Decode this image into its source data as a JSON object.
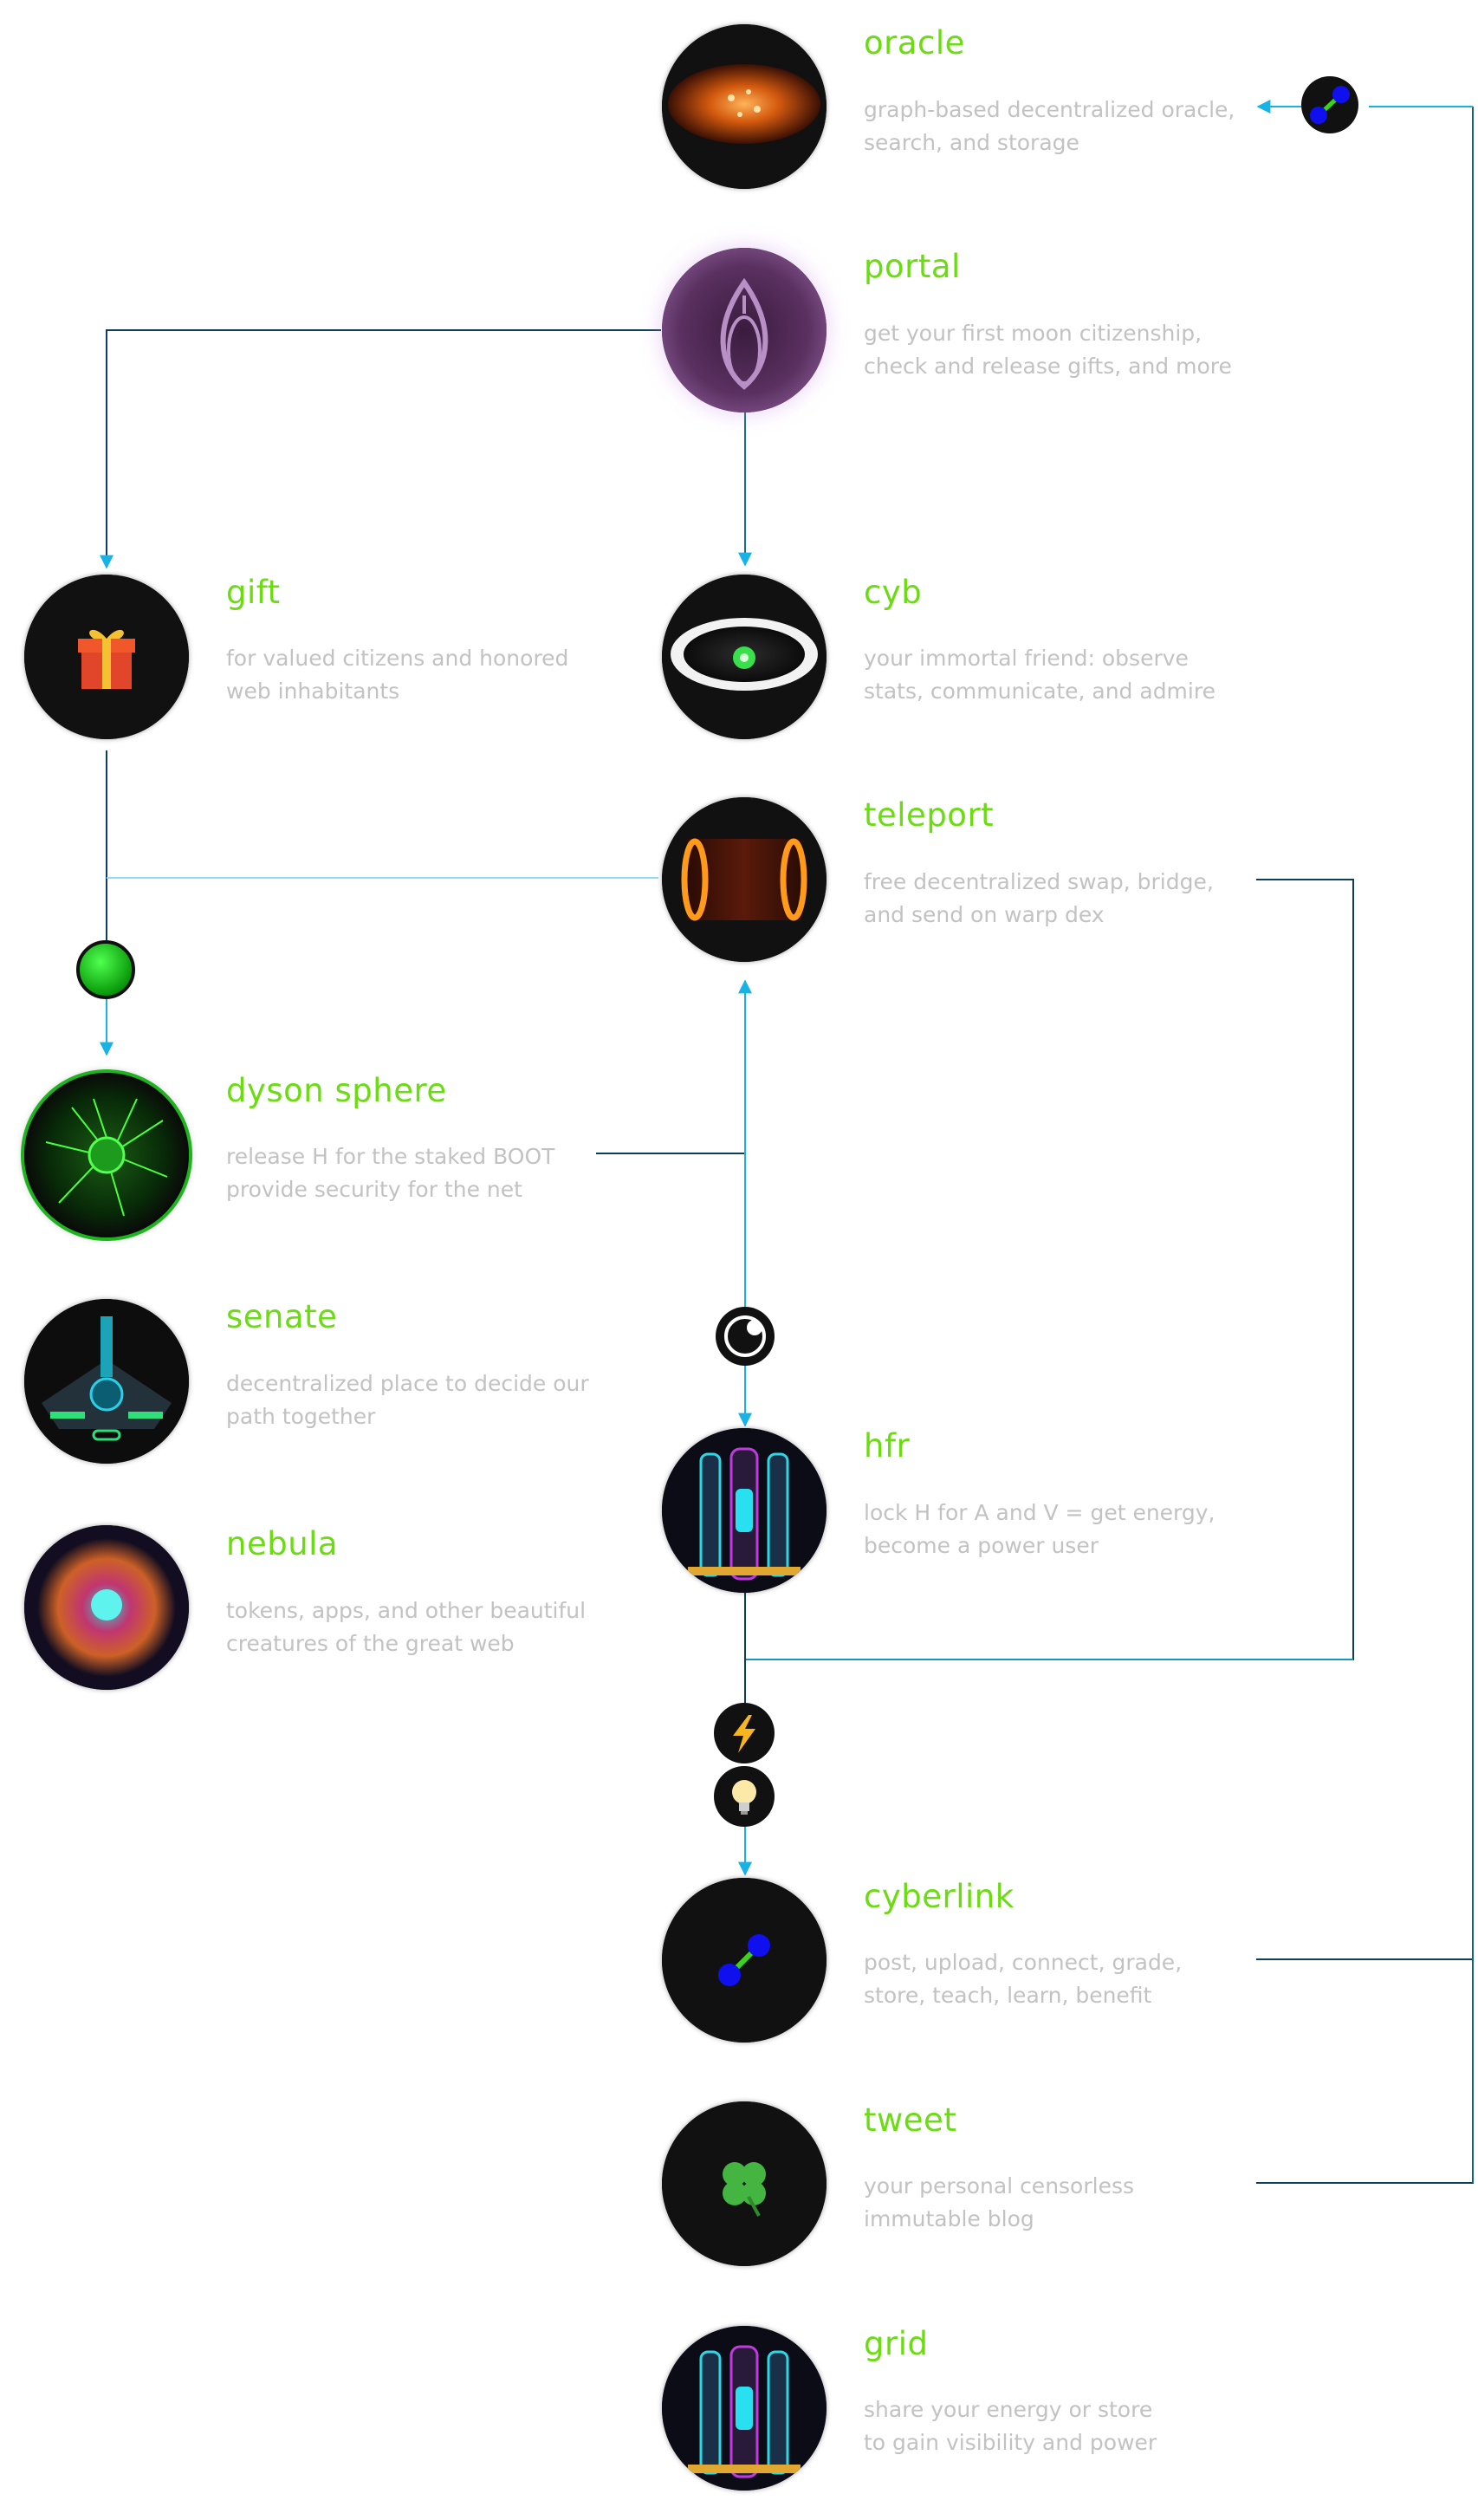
{
  "nodes": {
    "oracle": {
      "title": "oracle",
      "lines": [
        "graph-based decentralized oracle,",
        "search, and storage"
      ]
    },
    "portal": {
      "title": "portal",
      "lines": [
        "get your first moon citizenship,",
        "check and release gifts, and more"
      ]
    },
    "gift": {
      "title": "gift",
      "lines": [
        "for valued citizens and honored",
        "web inhabitants"
      ]
    },
    "cyb": {
      "title": "cyb",
      "lines": [
        "your immortal friend: observe",
        "stats, communicate, and admire"
      ]
    },
    "teleport": {
      "title": "teleport",
      "lines": [
        "free decentralized swap, bridge,",
        "and send on warp dex"
      ]
    },
    "dyson": {
      "title": "dyson sphere",
      "lines": [
        "release H for the staked BOOT",
        "provide security for the net"
      ]
    },
    "senate": {
      "title": "senate",
      "lines": [
        "decentralized place to decide our",
        "path together"
      ]
    },
    "nebula": {
      "title": "nebula",
      "lines": [
        "tokens, apps, and other beautiful",
        "creatures of the great web"
      ]
    },
    "hfr": {
      "title": "hfr",
      "lines": [
        "lock H for A and V = get energy,",
        "become a power user"
      ]
    },
    "cyberlink": {
      "title": "cyberlink",
      "lines": [
        "post, upload, connect, grade,",
        "store, teach, learn, benefit"
      ]
    },
    "tweet": {
      "title": "tweet",
      "lines": [
        "your personal censorless",
        "immutable blog"
      ]
    },
    "grid": {
      "title": "grid",
      "lines": [
        "share your energy or store",
        "to gain visibility and power"
      ]
    }
  },
  "icons": {
    "gift": "gift-icon",
    "tweet": "four-leaf-clover-icon",
    "energy": "lightning-icon",
    "light": "lightbulb-icon",
    "cyberlink": "cyberlink-icon"
  },
  "colors": {
    "title": "#6bdc12",
    "description": "#c2c2c2",
    "wire_light": "#17b2e6",
    "wire_dark": "#0f3f58",
    "node_bg": "#111111"
  }
}
